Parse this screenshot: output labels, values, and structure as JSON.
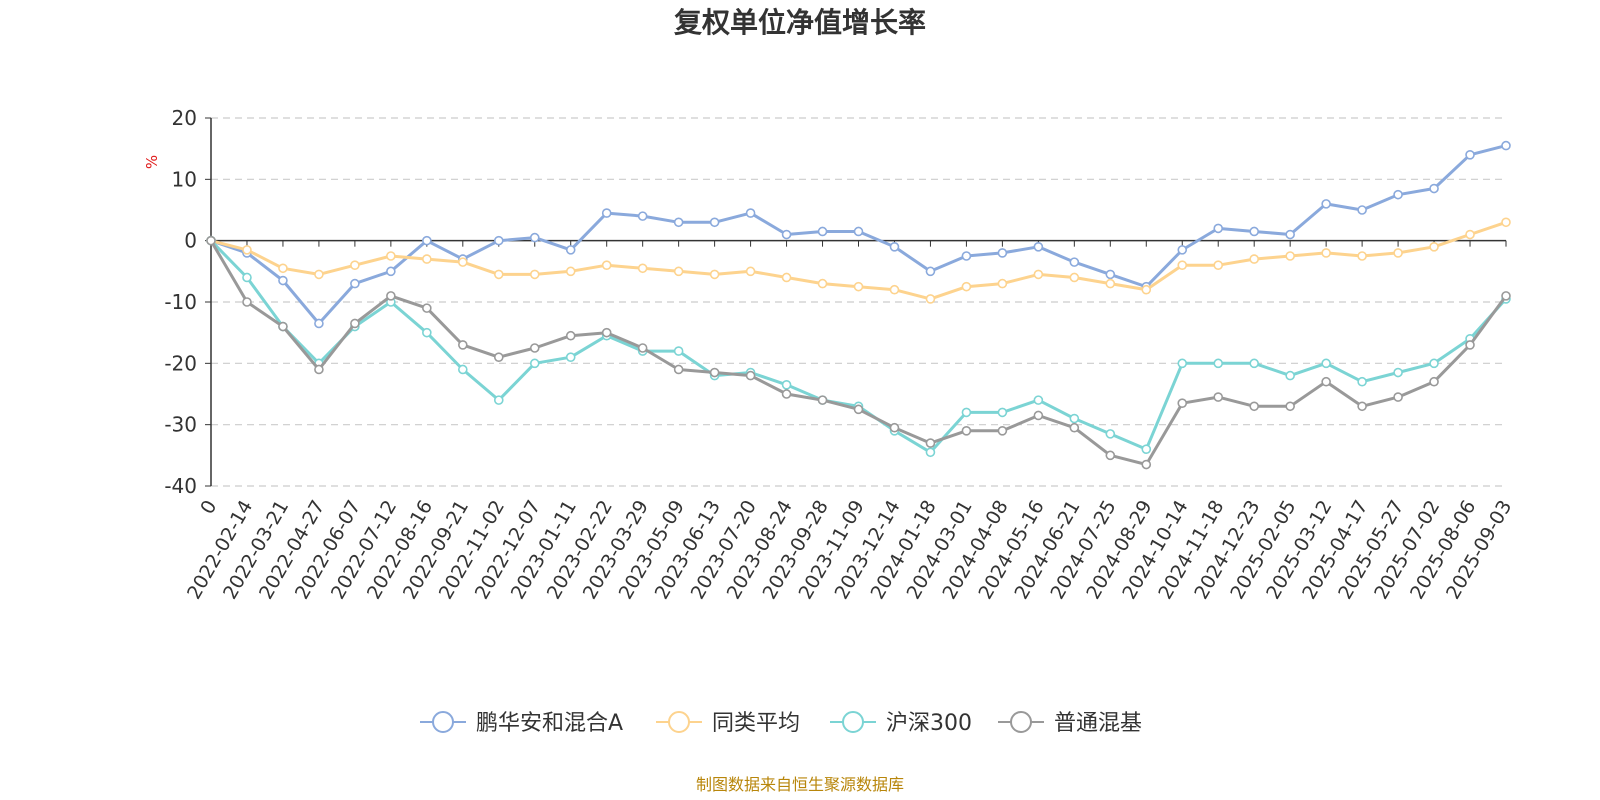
{
  "chart_data": {
    "type": "line",
    "title": "复权单位净值增长率",
    "ylabel": "%",
    "ylim": [
      -40,
      20
    ],
    "yticks": [
      20,
      10,
      0,
      -10,
      -20,
      -30,
      -40
    ],
    "grid": true,
    "legend_position": "bottom",
    "source_note": "制图数据来自恒生聚源数据库",
    "x": [
      "0",
      "2022-02-14",
      "2022-03-21",
      "2022-04-27",
      "2022-06-07",
      "2022-07-12",
      "2022-08-16",
      "2022-09-21",
      "2022-11-02",
      "2022-12-07",
      "2023-01-11",
      "2023-02-22",
      "2023-03-29",
      "2023-05-09",
      "2023-06-13",
      "2023-07-20",
      "2023-08-24",
      "2023-09-28",
      "2023-11-09",
      "2023-12-14",
      "2024-01-18",
      "2024-03-01",
      "2024-04-08",
      "2024-05-16",
      "2024-06-21",
      "2024-07-25",
      "2024-08-29",
      "2024-10-14",
      "2024-11-18",
      "2024-12-23",
      "2025-02-05",
      "2025-03-12",
      "2025-04-17",
      "2025-05-27",
      "2025-07-02",
      "2025-08-06",
      "2025-09-03"
    ],
    "series": [
      {
        "name": "鹏华安和混合A",
        "color": "#8aa9dc",
        "values": [
          0,
          -2.0,
          -6.5,
          -13.5,
          -7.0,
          -5.0,
          0,
          -3.0,
          0,
          0.5,
          -1.5,
          4.5,
          4.0,
          3.0,
          3.0,
          4.5,
          1.0,
          1.5,
          1.5,
          -1.0,
          -5.0,
          -2.5,
          -2.0,
          -1.0,
          -3.5,
          -5.5,
          -7.5,
          -1.5,
          2.0,
          1.5,
          1.0,
          6.0,
          5.0,
          7.5,
          8.5,
          14.0,
          15.5
        ]
      },
      {
        "name": "同类平均",
        "color": "#fdd38e",
        "values": [
          0,
          -1.5,
          -4.5,
          -5.5,
          -4.0,
          -2.5,
          -3.0,
          -3.5,
          -5.5,
          -5.5,
          -5.0,
          -4.0,
          -4.5,
          -5.0,
          -5.5,
          -5.0,
          -6.0,
          -7.0,
          -7.5,
          -8.0,
          -9.5,
          -7.5,
          -7.0,
          -5.5,
          -6.0,
          -7.0,
          -8.0,
          -4.0,
          -4.0,
          -3.0,
          -2.5,
          -2.0,
          -2.5,
          -2.0,
          -1.0,
          1.0,
          3.0
        ]
      },
      {
        "name": "沪深300",
        "color": "#7bd4d4",
        "values": [
          0,
          -6.0,
          -14.0,
          -20.0,
          -14.0,
          -10.0,
          -15.0,
          -21.0,
          -26.0,
          -20.0,
          -19.0,
          -15.5,
          -18.0,
          -18.0,
          -22.0,
          -21.5,
          -23.5,
          -26.0,
          -27.0,
          -31.0,
          -34.5,
          -28.0,
          -28.0,
          -26.0,
          -29.0,
          -31.5,
          -34.0,
          -20.0,
          -20.0,
          -20.0,
          -22.0,
          -20.0,
          -23.0,
          -21.5,
          -20.0,
          -16.0,
          -9.5
        ]
      },
      {
        "name": "普通混基",
        "color": "#999999",
        "values": [
          0,
          -10.0,
          -14.0,
          -21.0,
          -13.5,
          -9.0,
          -11.0,
          -17.0,
          -19.0,
          -17.5,
          -15.5,
          -15.0,
          -17.5,
          -21.0,
          -21.5,
          -22.0,
          -25.0,
          -26.0,
          -27.5,
          -30.5,
          -33.0,
          -31.0,
          -31.0,
          -28.5,
          -30.5,
          -35.0,
          -36.5,
          -26.5,
          -25.5,
          -27.0,
          -27.0,
          -23.0,
          -27.0,
          -25.5,
          -23.0,
          -17.0,
          -9.0
        ]
      }
    ]
  }
}
